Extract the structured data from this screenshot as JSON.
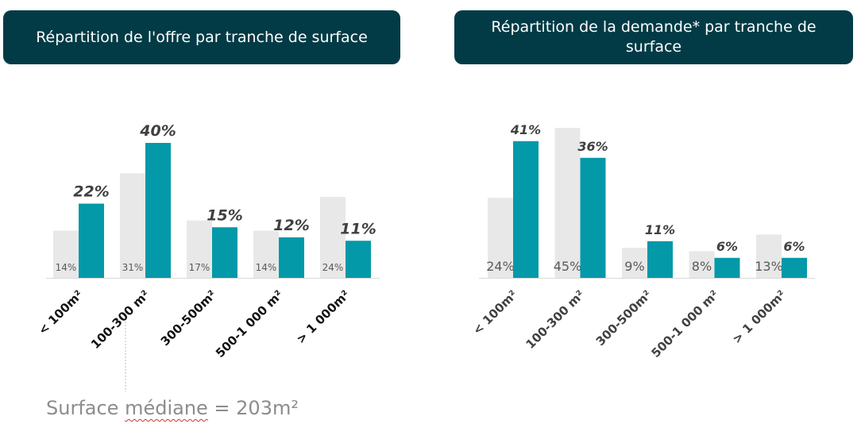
{
  "colors": {
    "header_bg": "#023b46",
    "offer_bar": "#0399a8",
    "reference_bar": "#e8e8e8",
    "label_dark": "#404040"
  },
  "note": {
    "prefix": "Surface ",
    "underlined": "médiane",
    "suffix": " = 203m²"
  },
  "chart_data": [
    {
      "type": "bar",
      "title": "Répartition de l'offre par tranche de surface",
      "categories": [
        "< 100m²",
        "100-300 m²",
        "300-500m²",
        "500-1 000 m²",
        "> 1 000m²"
      ],
      "series": [
        {
          "name": "",
          "values": [
            14,
            31,
            17,
            14,
            24
          ],
          "labels": [
            "14%",
            "31%",
            "17%",
            "14%",
            "24%"
          ]
        },
        {
          "name": "",
          "values": [
            22,
            40,
            15,
            12,
            11
          ],
          "labels": [
            "22%",
            "40%",
            "15%",
            "12%",
            "11%"
          ]
        }
      ],
      "ylim": [
        0,
        45
      ],
      "grid": false
    },
    {
      "type": "bar",
      "title": "Répartition de la demande* par tranche de surface",
      "categories": [
        "< 100m²",
        "100-300 m²",
        "300-500m²",
        "500-1 000 m²",
        "> 1 000m²"
      ],
      "series": [
        {
          "name": "",
          "values": [
            24,
            45,
            9,
            8,
            13
          ],
          "labels": [
            "24%",
            "45%",
            "9%",
            "8%",
            "13%"
          ]
        },
        {
          "name": "",
          "values": [
            41,
            36,
            11,
            6,
            6
          ],
          "labels": [
            "41%",
            "36%",
            "11%",
            "6%",
            "6%"
          ]
        }
      ],
      "ylim": [
        0,
        45
      ],
      "grid": false
    }
  ]
}
